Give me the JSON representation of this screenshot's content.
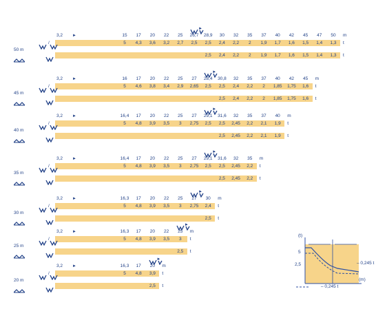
{
  "labels": {
    "dist_unit": "m",
    "load_unit": "t",
    "first_radius": "3,2",
    "arrow": "►",
    "slash": "/"
  },
  "sections": [
    {
      "boom": "50 m",
      "radii": [
        "15",
        "17",
        "20",
        "22",
        "25",
        "26,7",
        "28,9",
        "30",
        "32",
        "35",
        "37",
        "40",
        "42",
        "45",
        "47",
        "50"
      ],
      "row1": [
        "5",
        "4,3",
        "3,6",
        "3,2",
        "2,7",
        "2,5",
        "2,5",
        "2,4",
        "2,2",
        "2",
        "1,9",
        "1,7",
        "1,6",
        "1,5",
        "1,4",
        "1,3"
      ],
      "row2": [
        "",
        "",
        "",
        "",
        "",
        "",
        "2,5",
        "2,4",
        "2,2",
        "2",
        "1,9",
        "1,7",
        "1,6",
        "1,5",
        "1,4",
        "1,3"
      ],
      "split": 6
    },
    {
      "boom": "45 m",
      "radii": [
        "16",
        "17",
        "20",
        "22",
        "25",
        "27",
        "28,4",
        "30,8",
        "32",
        "35",
        "37",
        "40",
        "42",
        "45"
      ],
      "row1": [
        "5",
        "4,6",
        "3,8",
        "3,4",
        "2,9",
        "2,65",
        "2,5",
        "2,5",
        "2,4",
        "2,2",
        "2",
        "1,85",
        "1,75",
        "1,6"
      ],
      "row2": [
        "",
        "",
        "",
        "",
        "",
        "",
        "",
        "2,5",
        "2,4",
        "2,2",
        "2",
        "1,85",
        "1,75",
        "1,6"
      ],
      "split": 7
    },
    {
      "boom": "40 m",
      "radii": [
        "16,4",
        "17",
        "20",
        "22",
        "25",
        "27",
        "29,1",
        "31,6",
        "32",
        "35",
        "37",
        "40"
      ],
      "row1": [
        "5",
        "4,8",
        "3,9",
        "3,5",
        "3",
        "2,75",
        "2,5",
        "2,5",
        "2,45",
        "2,2",
        "2,1",
        "1,9"
      ],
      "row2": [
        "",
        "",
        "",
        "",
        "",
        "",
        "",
        "2,5",
        "2,45",
        "2,2",
        "2,1",
        "1,9"
      ],
      "split": 7
    },
    {
      "boom": "35 m",
      "radii": [
        "16,4",
        "17",
        "20",
        "22",
        "25",
        "27",
        "29,1",
        "31,6",
        "32",
        "35"
      ],
      "row1": [
        "5",
        "4,8",
        "3,9",
        "3,5",
        "3",
        "2,75",
        "2,5",
        "2,5",
        "2,45",
        "2,2"
      ],
      "row2": [
        "",
        "",
        "",
        "",
        "",
        "",
        "",
        "2,5",
        "2,45",
        "2,2"
      ],
      "split": 7
    },
    {
      "boom": "30 m",
      "radii": [
        "16,3",
        "17",
        "20",
        "22",
        "25",
        "27",
        "30"
      ],
      "row1": [
        "5",
        "4,8",
        "3,9",
        "3,5",
        "3",
        "2,75",
        "2,4"
      ],
      "row2": [
        "",
        "",
        "",
        "",
        "",
        "",
        "2,5"
      ],
      "split": 6
    },
    {
      "boom": "25 m",
      "radii": [
        "16,3",
        "17",
        "20",
        "22",
        "25"
      ],
      "row1": [
        "5",
        "4,8",
        "3,9",
        "3,5",
        "3"
      ],
      "row2": [
        "",
        "",
        "",
        "",
        "2,5"
      ],
      "split": 5
    },
    {
      "boom": "20 m",
      "radii": [
        "16,3",
        "17",
        "20"
      ],
      "row1": [
        "5",
        "4,8",
        "3,9"
      ],
      "row2": [
        "",
        "",
        "2,5"
      ],
      "split": 3
    }
  ],
  "diagram": {
    "y_unit": "(t)",
    "y5": "5",
    "y25": "2,5",
    "x_unit": "(m)",
    "right_label": "– 0,245 t",
    "legend_text": "– 0,245 t"
  },
  "colors": {
    "bar": "#f7d48a",
    "ink": "#1f3f86"
  },
  "icons": [
    "hook-block-icon",
    "single-hook-icon",
    "jib-icon"
  ]
}
